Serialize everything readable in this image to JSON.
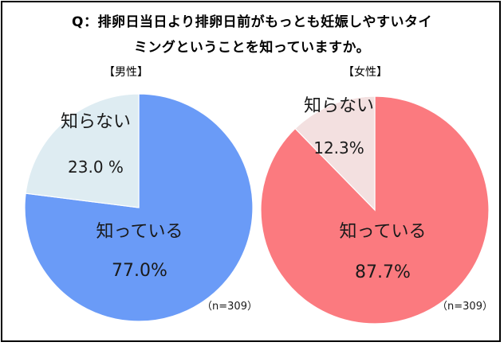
{
  "title_line1": "Q：排卵日当日より排卵日前がもっとも妊娠しやすいタイ",
  "title_line2": "ミングということを知っていますか。",
  "chart_data": [
    {
      "type": "pie",
      "group_label": "【男性】",
      "n_label": "（n=309）",
      "slices": [
        {
          "label": "知っている",
          "value": 77.0,
          "value_text": "77.0%",
          "color": "#6a9bf7"
        },
        {
          "label": "知らない",
          "value": 23.0,
          "value_text": "23.0 %",
          "color": "#deecf2"
        }
      ]
    },
    {
      "type": "pie",
      "group_label": "【女性】",
      "n_label": "（n=309）",
      "slices": [
        {
          "label": "知っている",
          "value": 87.7,
          "value_text": "87.7%",
          "color": "#fb7a7f"
        },
        {
          "label": "知らない",
          "value": 12.3,
          "value_text": "12.3%",
          "color": "#f3e0e0"
        }
      ]
    }
  ]
}
